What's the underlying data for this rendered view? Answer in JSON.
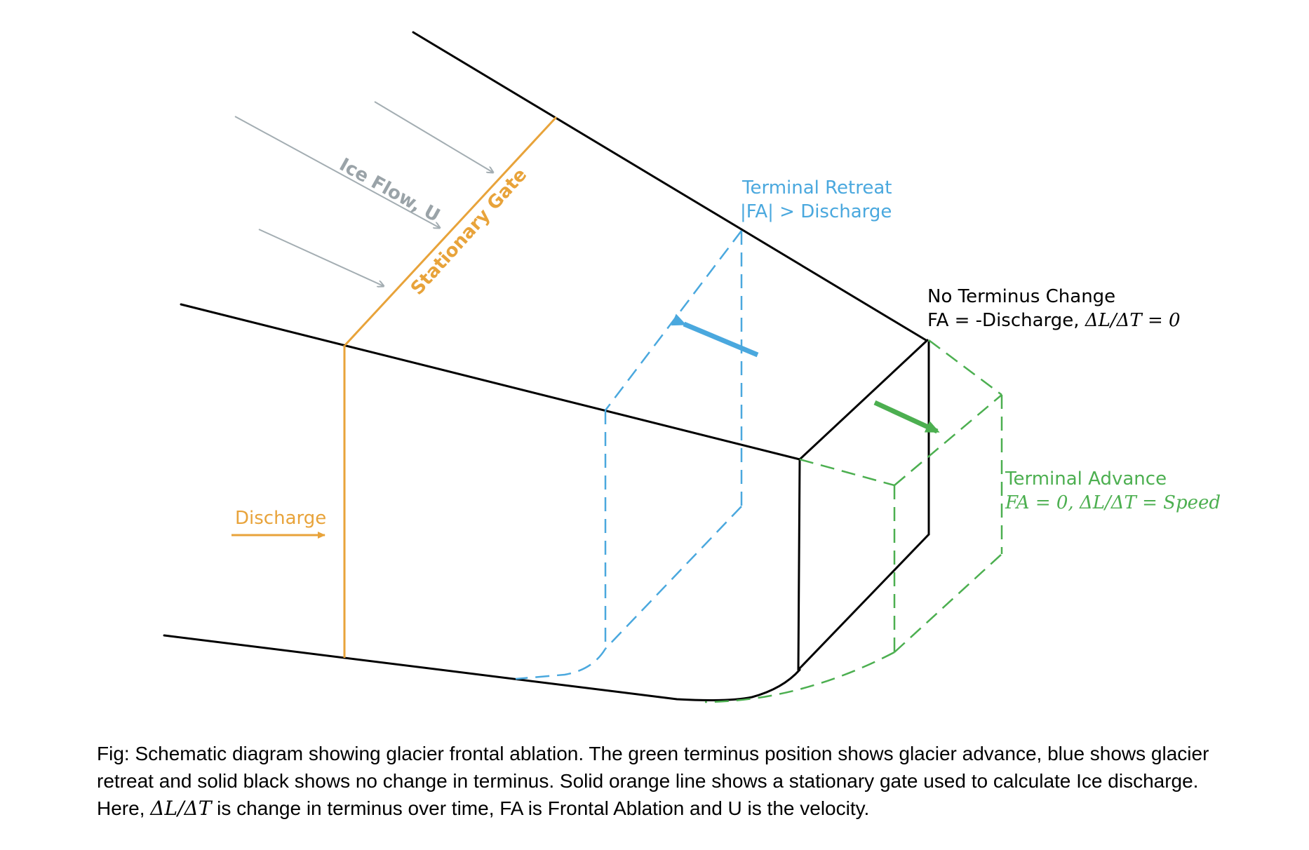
{
  "labels": {
    "ice_flow": "Ice Flow, U",
    "stationary_gate": "Stationary Gate",
    "discharge": "Discharge",
    "terminal_retreat_title": "Terminal Retreat",
    "terminal_retreat_eq": "|FA| > Discharge",
    "no_change_title": "No Terminus Change",
    "no_change_eq_text": "FA = -Discharge, ",
    "no_change_eq_math": "ΔL/ΔT = 0",
    "terminal_advance_title": "Terminal Advance",
    "terminal_advance_eq": "FA = 0, ΔL/ΔT = Speed"
  },
  "caption": {
    "line1": "Fig: Schematic diagram showing glacier frontal ablation. The green terminus position shows glacier advance, blue shows glacier",
    "line2": "retreat and solid black shows no change in terminus. Solid orange line shows a stationary gate used to calculate Ice discharge.",
    "line3_a": "Here, ",
    "line3_math": "ΔL/ΔT",
    "line3_b": " is change in terminus over time, FA is Frontal Ablation and U is the velocity."
  },
  "colors": {
    "outline": "#000000",
    "gate": "#e8a33a",
    "flow_arrows": "#a3adb2",
    "ice_flow_label": "#9aa3a8",
    "retreat": "#4aa8de",
    "advance": "#4caf50",
    "caption_text": "#000000"
  }
}
